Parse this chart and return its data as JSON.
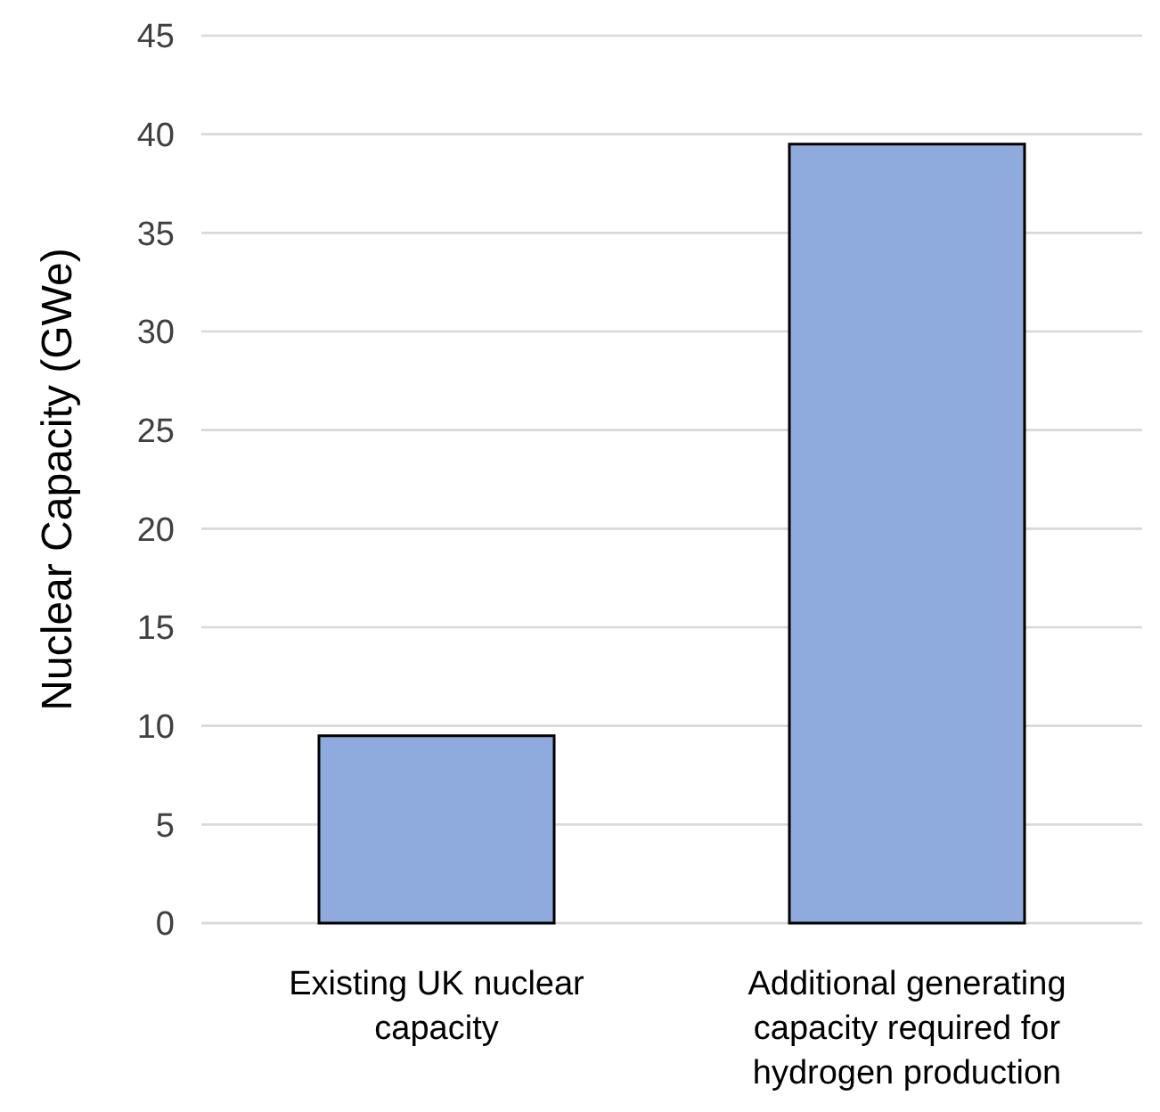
{
  "chart_data": {
    "type": "bar",
    "ylabel": "Nuclear Capacity (GWe)",
    "categories": [
      "Existing UK nuclear capacity",
      "Additional generating capacity required for hydrogen production"
    ],
    "values": [
      9.5,
      39.5
    ],
    "color": "#8faadc",
    "ylim": [
      0,
      45
    ],
    "yticks": [
      0,
      5,
      10,
      15,
      20,
      25,
      30,
      35,
      40,
      45
    ],
    "grid": "y"
  }
}
